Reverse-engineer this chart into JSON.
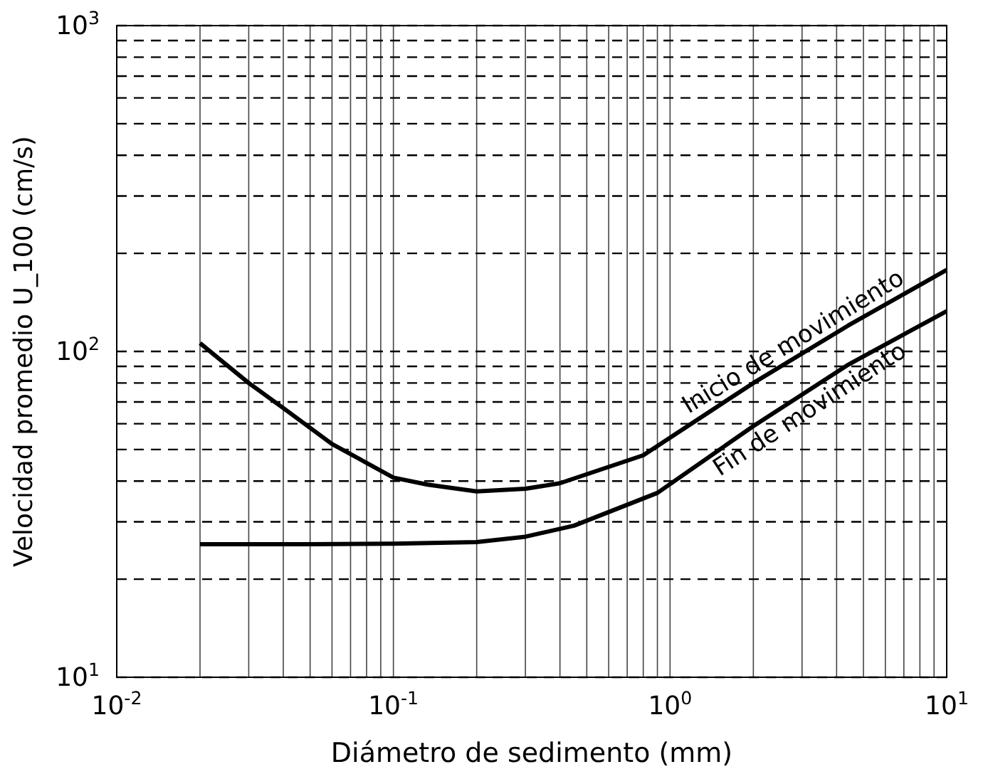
{
  "chart_data": {
    "type": "line",
    "xlabel": "Diámetro de sedimento (mm)",
    "ylabel": "Velocidad promedio U_100 (cm/s)",
    "log": "xy",
    "grid": true,
    "marker": "none",
    "line_style": "solid",
    "xlim": [
      0.01,
      10
    ],
    "ylim": [
      10,
      1000
    ],
    "xticks": [
      {
        "value": 0.01,
        "label": "10$^{-2}$"
      },
      {
        "value": 0.02,
        "label": null
      },
      {
        "value": 0.03,
        "label": null
      },
      {
        "value": 0.04,
        "label": null
      },
      {
        "value": 0.05,
        "label": null
      },
      {
        "value": 0.06,
        "label": null
      },
      {
        "value": 0.07,
        "label": null
      },
      {
        "value": 0.08,
        "label": null
      },
      {
        "value": 0.09,
        "label": null
      },
      {
        "value": 0.1,
        "label": "10$^{-1}$"
      },
      {
        "value": 0.2,
        "label": null
      },
      {
        "value": 0.3,
        "label": null
      },
      {
        "value": 0.4,
        "label": null
      },
      {
        "value": 0.5,
        "label": null
      },
      {
        "value": 0.6,
        "label": null
      },
      {
        "value": 0.7,
        "label": null
      },
      {
        "value": 0.8,
        "label": null
      },
      {
        "value": 0.9,
        "label": null
      },
      {
        "value": 1,
        "label": "10$^{0}$"
      },
      {
        "value": 2,
        "label": null
      },
      {
        "value": 3,
        "label": null
      },
      {
        "value": 4,
        "label": null
      },
      {
        "value": 5,
        "label": null
      },
      {
        "value": 6,
        "label": null
      },
      {
        "value": 7,
        "label": null
      },
      {
        "value": 8,
        "label": null
      },
      {
        "value": 9,
        "label": null
      },
      {
        "value": 10,
        "label": "10$^{1}$"
      }
    ],
    "yticks": [
      {
        "value": 10,
        "label": "10$^{1}$"
      },
      {
        "value": 20,
        "label": null
      },
      {
        "value": 30,
        "label": null
      },
      {
        "value": 40,
        "label": null
      },
      {
        "value": 50,
        "label": null
      },
      {
        "value": 60,
        "label": null
      },
      {
        "value": 70,
        "label": null
      },
      {
        "value": 80,
        "label": null
      },
      {
        "value": 90,
        "label": null
      },
      {
        "value": 100,
        "label": "10$^{2}$"
      },
      {
        "value": 200,
        "label": null
      },
      {
        "value": 300,
        "label": null
      },
      {
        "value": 400,
        "label": null
      },
      {
        "value": 500,
        "label": null
      },
      {
        "value": 600,
        "label": null
      },
      {
        "value": 700,
        "label": null
      },
      {
        "value": 800,
        "label": null
      },
      {
        "value": 900,
        "label": null
      },
      {
        "value": 1000,
        "label": "10$^{3}$"
      }
    ],
    "series": [
      {
        "name": "Inicio de movimiento",
        "color": "#000000",
        "x": [
          0.02,
          0.03,
          0.04,
          0.06,
          0.1,
          0.133,
          0.2,
          0.3,
          0.4,
          0.8,
          2,
          4.4,
          10
        ],
        "values": [
          106,
          80,
          67,
          52,
          41,
          39,
          37.2,
          37.9,
          39.4,
          48,
          80,
          120,
          178
        ]
      },
      {
        "name": "Fin de movimiento",
        "color": "#000000",
        "x": [
          0.02,
          0.05,
          0.1,
          0.2,
          0.3,
          0.45,
          0.9,
          2,
          4.4,
          10
        ],
        "values": [
          25.6,
          25.6,
          25.7,
          26,
          27,
          29.2,
          36.8,
          59,
          91,
          133
        ]
      }
    ]
  }
}
